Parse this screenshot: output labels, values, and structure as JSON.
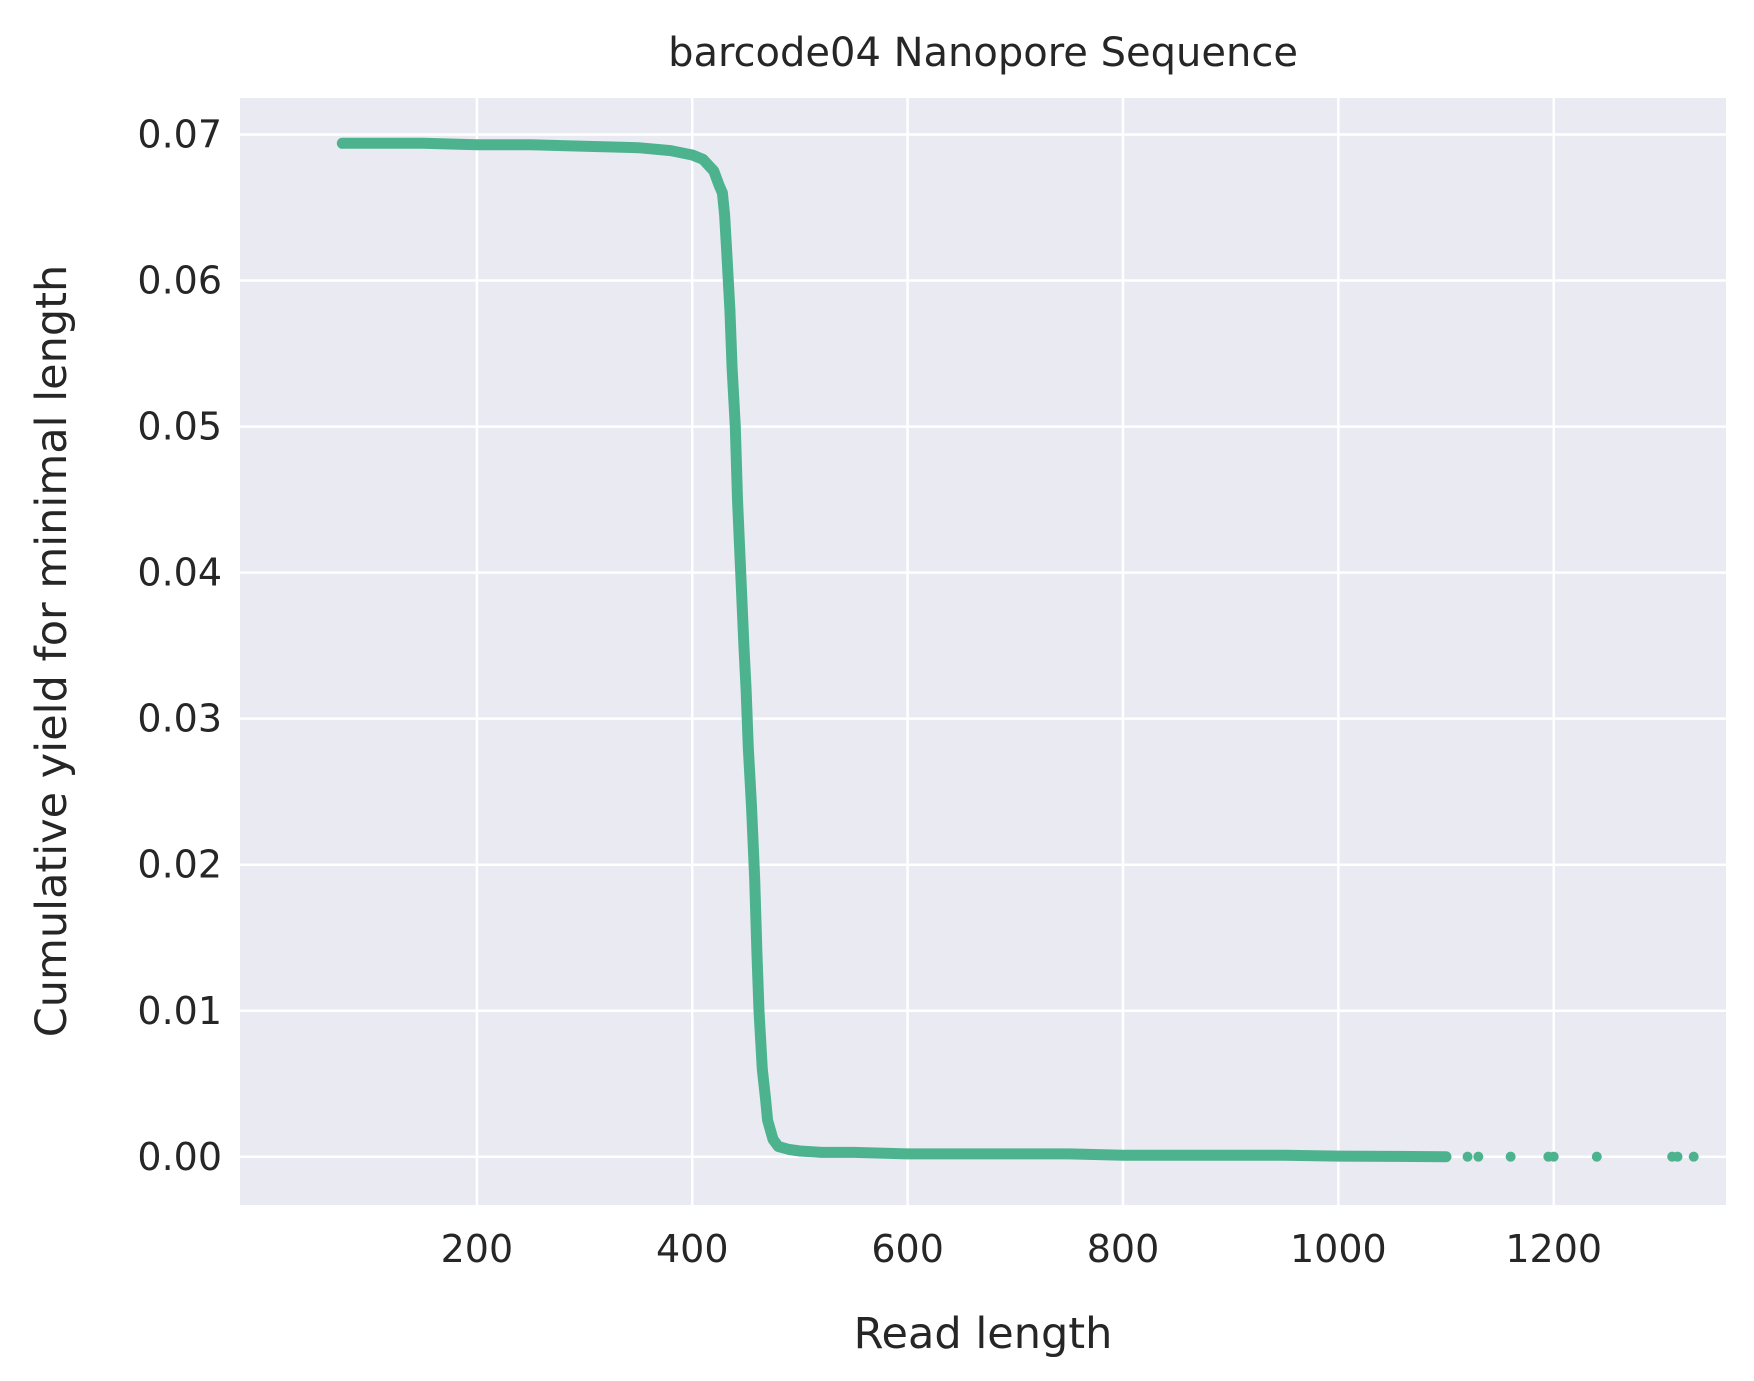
{
  "chart_data": {
    "type": "scatter",
    "title": "barcode04 Nanopore Sequence",
    "xlabel": "Read length",
    "ylabel": "Cumulative yield for minimal length",
    "xlim": [
      -20,
      1360
    ],
    "ylim": [
      -0.0033,
      0.0725
    ],
    "xticks": [
      200,
      400,
      600,
      800,
      1000,
      1200
    ],
    "xtick_labels": [
      "200",
      "400",
      "600",
      "800",
      "1000",
      "1200"
    ],
    "yticks": [
      0.0,
      0.01,
      0.02,
      0.03,
      0.04,
      0.05,
      0.06,
      0.07
    ],
    "ytick_labels": [
      "0.00",
      "0.01",
      "0.02",
      "0.03",
      "0.04",
      "0.05",
      "0.06",
      "0.07"
    ],
    "grid": true,
    "colors": {
      "background": "#EAEAF2",
      "grid": "#FFFFFF",
      "series": "#4DB38E",
      "text": "#262626"
    },
    "series": [
      {
        "name": "barcode04",
        "x": [
          75,
          100,
          150,
          200,
          250,
          300,
          350,
          380,
          400,
          410,
          420,
          425,
          428,
          430,
          432,
          435,
          437,
          440,
          442,
          445,
          448,
          450,
          452,
          455,
          458,
          460,
          462,
          465,
          468,
          470,
          475,
          480,
          490,
          500,
          520,
          550,
          600,
          650,
          700,
          750,
          800,
          850,
          900,
          950,
          1000,
          1050,
          1100
        ],
        "y": [
          0.0694,
          0.0694,
          0.0694,
          0.0693,
          0.0693,
          0.0692,
          0.0691,
          0.0689,
          0.0686,
          0.0683,
          0.0675,
          0.0665,
          0.066,
          0.0645,
          0.062,
          0.058,
          0.054,
          0.05,
          0.045,
          0.04,
          0.035,
          0.032,
          0.028,
          0.024,
          0.019,
          0.014,
          0.01,
          0.006,
          0.004,
          0.0025,
          0.0012,
          0.0007,
          0.0005,
          0.0004,
          0.0003,
          0.0003,
          0.0002,
          0.0002,
          0.0002,
          0.0002,
          0.0001,
          0.0001,
          0.0001,
          0.0001,
          5e-05,
          3e-05,
          1e-05
        ]
      },
      {
        "name": "barcode04-outliers",
        "x": [
          1120,
          1130,
          1160,
          1195,
          1200,
          1240,
          1310,
          1315,
          1330
        ],
        "y": [
          1e-05,
          1e-05,
          1e-05,
          1e-05,
          1e-05,
          1e-05,
          1e-05,
          1e-05,
          1e-05
        ]
      }
    ]
  }
}
